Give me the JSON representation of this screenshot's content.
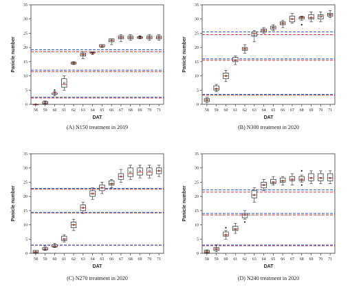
{
  "chart_data": [
    {
      "type": "box",
      "caption": "(A) N150 treatment in 2019",
      "ylabel": "Panicle number",
      "xlabel": "DAT",
      "ylim": [
        0,
        35
      ],
      "yticks": [
        0,
        5,
        10,
        15,
        20,
        25,
        30,
        35
      ],
      "categories": [
        "58",
        "59",
        "60",
        "61",
        "62",
        "63",
        "64",
        "65",
        "66",
        "67",
        "68",
        "69",
        "70",
        "71"
      ],
      "boxes": [
        {
          "min": 0,
          "q1": 0,
          "median": 0,
          "q3": 0,
          "max": 0,
          "mean": 0
        },
        {
          "min": 0,
          "q1": 0.2,
          "median": 0.5,
          "q3": 1,
          "max": 1.2,
          "mean": 0.5
        },
        {
          "min": 3,
          "q1": 3.5,
          "median": 4,
          "q3": 4,
          "max": 4.5,
          "mean": 4,
          "outliers": [
            5
          ]
        },
        {
          "min": 5,
          "q1": 6,
          "median": 7,
          "q3": 9,
          "max": 10,
          "mean": 7.5
        },
        {
          "min": 14,
          "q1": 14.2,
          "median": 14.5,
          "q3": 14.8,
          "max": 15,
          "mean": 14.5
        },
        {
          "min": 16,
          "q1": 17,
          "median": 17.5,
          "q3": 18,
          "max": 18.5,
          "mean": 17.5
        },
        {
          "min": 17.5,
          "q1": 18,
          "median": 18,
          "q3": 18.2,
          "max": 18.5,
          "mean": 18
        },
        {
          "min": 20,
          "q1": 20.2,
          "median": 20.5,
          "q3": 21,
          "max": 21,
          "mean": 20.5
        },
        {
          "min": 21,
          "q1": 22,
          "median": 22.5,
          "q3": 23,
          "max": 23,
          "mean": 22.5
        },
        {
          "min": 22,
          "q1": 23,
          "median": 23.5,
          "q3": 24,
          "max": 24.5,
          "mean": 23.5
        },
        {
          "min": 22.5,
          "q1": 23,
          "median": 23.5,
          "q3": 24,
          "max": 24.5,
          "mean": 23.5
        },
        {
          "min": 23,
          "q1": 23.2,
          "median": 23.5,
          "q3": 23.8,
          "max": 24,
          "mean": 23.5,
          "outliers": [
            24
          ]
        },
        {
          "min": 22.5,
          "q1": 23,
          "median": 23.5,
          "q3": 24,
          "max": 24.5,
          "mean": 23.5
        },
        {
          "min": 22.5,
          "q1": 23,
          "median": 23.5,
          "q3": 24,
          "max": 24.5,
          "mean": 23.5
        }
      ],
      "reference_lines": {
        "red": [
          2.2,
          11.5,
          18.5
        ],
        "blue": [
          2.5,
          12,
          19.2
        ]
      }
    },
    {
      "type": "box",
      "caption": "(B) N300 treatment in 2020",
      "ylabel": "Panicle number",
      "xlabel": "DAT",
      "ylim": [
        0,
        35
      ],
      "yticks": [
        0,
        5,
        10,
        15,
        20,
        25,
        30,
        35
      ],
      "categories": [
        "58",
        "59",
        "60",
        "61",
        "62",
        "63",
        "64",
        "65",
        "66",
        "67",
        "68",
        "69",
        "70",
        "71"
      ],
      "boxes": [
        {
          "min": 0.5,
          "q1": 1,
          "median": 1.5,
          "q3": 2,
          "max": 2.5,
          "mean": 1.5
        },
        {
          "min": 4.5,
          "q1": 5,
          "median": 5.5,
          "q3": 6.5,
          "max": 7,
          "mean": 5.5
        },
        {
          "min": 8,
          "q1": 9,
          "median": 10,
          "q3": 11,
          "max": 12,
          "mean": 10
        },
        {
          "min": 14,
          "q1": 15,
          "median": 15.5,
          "q3": 16.5,
          "max": 17,
          "mean": 15.5
        },
        {
          "min": 18,
          "q1": 19,
          "median": 19.5,
          "q3": 20,
          "max": 21,
          "mean": 19.5
        },
        {
          "min": 22,
          "q1": 24,
          "median": 25,
          "q3": 25.5,
          "max": 26,
          "mean": 24.5
        },
        {
          "min": 25,
          "q1": 25.5,
          "median": 26,
          "q3": 26.5,
          "max": 27,
          "mean": 26
        },
        {
          "min": 26,
          "q1": 26.5,
          "median": 27,
          "q3": 27.5,
          "max": 28,
          "mean": 27
        },
        {
          "min": 27,
          "q1": 28,
          "median": 28.5,
          "q3": 29,
          "max": 29.5,
          "mean": 28.5
        },
        {
          "min": 28.5,
          "q1": 29,
          "median": 30,
          "q3": 31,
          "max": 32,
          "mean": 30
        },
        {
          "min": 29.5,
          "q1": 30,
          "median": 30.5,
          "q3": 30.8,
          "max": 31,
          "mean": 30.5,
          "outliers": [
            28
          ]
        },
        {
          "min": 29,
          "q1": 30,
          "median": 30.5,
          "q3": 31.5,
          "max": 32.5,
          "mean": 30.5
        },
        {
          "min": 29,
          "q1": 30,
          "median": 31,
          "q3": 31.5,
          "max": 32.5,
          "mean": 30.8
        },
        {
          "min": 30.5,
          "q1": 31,
          "median": 31.5,
          "q3": 32,
          "max": 33,
          "mean": 31.5
        }
      ],
      "reference_lines": {
        "red": [
          3.2,
          15.5,
          24.5
        ],
        "blue": [
          3.5,
          16,
          25.5
        ]
      }
    },
    {
      "type": "box",
      "caption": "(C) N270 treatment in 2020",
      "ylabel": "Panicle number",
      "xlabel": "DAT",
      "ylim": [
        0,
        35
      ],
      "yticks": [
        0,
        5,
        10,
        15,
        20,
        25,
        30,
        35
      ],
      "categories": [
        "58",
        "59",
        "60",
        "61",
        "62",
        "63",
        "64",
        "65",
        "66",
        "67",
        "68",
        "69",
        "70",
        "71"
      ],
      "boxes": [
        {
          "min": 0,
          "q1": 0.2,
          "median": 0.5,
          "q3": 1,
          "max": 1,
          "mean": 0.5
        },
        {
          "min": 1,
          "q1": 1.2,
          "median": 1.5,
          "q3": 2,
          "max": 2.5,
          "mean": 1.5
        },
        {
          "min": 2,
          "q1": 2.2,
          "median": 2.5,
          "q3": 3,
          "max": 3.5,
          "mean": 2.5
        },
        {
          "min": 4,
          "q1": 4.5,
          "median": 5,
          "q3": 6,
          "max": 6.5,
          "mean": 5
        },
        {
          "min": 8,
          "q1": 9,
          "median": 10,
          "q3": 11,
          "max": 12,
          "mean": 10
        },
        {
          "min": 14,
          "q1": 15,
          "median": 16,
          "q3": 17,
          "max": 18,
          "mean": 16
        },
        {
          "min": 19,
          "q1": 20,
          "median": 21,
          "q3": 22,
          "max": 23,
          "mean": 21
        },
        {
          "min": 21,
          "q1": 22,
          "median": 23,
          "q3": 24,
          "max": 25,
          "mean": 23
        },
        {
          "min": 23,
          "q1": 24,
          "median": 24.5,
          "q3": 25.5,
          "max": 26,
          "mean": 24.5
        },
        {
          "min": 25,
          "q1": 26,
          "median": 27,
          "q3": 28,
          "max": 29.5,
          "mean": 27
        },
        {
          "min": 26,
          "q1": 27,
          "median": 28,
          "q3": 30,
          "max": 31,
          "mean": 28.5
        },
        {
          "min": 26.5,
          "q1": 27.5,
          "median": 28.5,
          "q3": 30,
          "max": 31,
          "mean": 29
        },
        {
          "min": 26.5,
          "q1": 27.5,
          "median": 28.5,
          "q3": 30,
          "max": 31,
          "mean": 29
        },
        {
          "min": 27,
          "q1": 28,
          "median": 29,
          "q3": 30,
          "max": 31,
          "mean": 29
        }
      ],
      "reference_lines": {
        "red": [
          2.8,
          14.2,
          22.5
        ],
        "blue": [
          2.9,
          14.4,
          22.8
        ]
      }
    },
    {
      "type": "box",
      "caption": "(D) N240 treatment in 2020",
      "ylabel": "Panicle number",
      "xlabel": "DAT",
      "ylim": [
        0,
        35
      ],
      "yticks": [
        0,
        5,
        10,
        15,
        20,
        25,
        30,
        35
      ],
      "categories": [
        "58",
        "59",
        "60",
        "61",
        "62",
        "63",
        "64",
        "65",
        "66",
        "67",
        "68",
        "69",
        "70",
        "71"
      ],
      "boxes": [
        {
          "min": 0,
          "q1": 0.2,
          "median": 0.5,
          "q3": 1,
          "max": 1.2,
          "mean": 0.5
        },
        {
          "min": 0.5,
          "q1": 1,
          "median": 1.5,
          "q3": 2,
          "max": 3,
          "mean": 1.5
        },
        {
          "min": 5,
          "q1": 6,
          "median": 6.5,
          "q3": 7.5,
          "max": 8,
          "mean": 6.5,
          "outliers": [
            9
          ]
        },
        {
          "min": 7,
          "q1": 8,
          "median": 8.5,
          "q3": 9.5,
          "max": 10.5,
          "mean": 8.5
        },
        {
          "min": 12,
          "q1": 12.5,
          "median": 13.5,
          "q3": 14,
          "max": 15,
          "mean": 13.5,
          "outliers": [
            11
          ]
        },
        {
          "min": 18,
          "q1": 19.5,
          "median": 20.5,
          "q3": 22,
          "max": 23,
          "mean": 20.5
        },
        {
          "min": 22,
          "q1": 23,
          "median": 24,
          "q3": 25,
          "max": 26,
          "mean": 24
        },
        {
          "min": 24,
          "q1": 24.5,
          "median": 25,
          "q3": 26,
          "max": 27,
          "mean": 25
        },
        {
          "min": 24,
          "q1": 25,
          "median": 25.5,
          "q3": 26.5,
          "max": 27,
          "mean": 25.5
        },
        {
          "min": 24,
          "q1": 25.5,
          "median": 26,
          "q3": 27,
          "max": 28,
          "mean": 26
        },
        {
          "min": 25,
          "q1": 25.5,
          "median": 26,
          "q3": 27,
          "max": 27.5,
          "mean": 26,
          "outliers": [
            29,
            24
          ]
        },
        {
          "min": 24.5,
          "q1": 25.5,
          "median": 26.5,
          "q3": 28,
          "max": 29,
          "mean": 26.5
        },
        {
          "min": 24.5,
          "q1": 25.5,
          "median": 26.5,
          "q3": 28,
          "max": 29,
          "mean": 26.5
        },
        {
          "min": 24.5,
          "q1": 25.5,
          "median": 26.5,
          "q3": 28,
          "max": 29,
          "mean": 26.5
        }
      ],
      "reference_lines": {
        "red": [
          2.7,
          13.5,
          21.5
        ],
        "blue": [
          2.9,
          14,
          22.3
        ]
      }
    }
  ],
  "colors": {
    "box": "#222222",
    "median": "#c0392b",
    "red_line": "#d9333f",
    "blue_line": "#2b4fd9"
  }
}
